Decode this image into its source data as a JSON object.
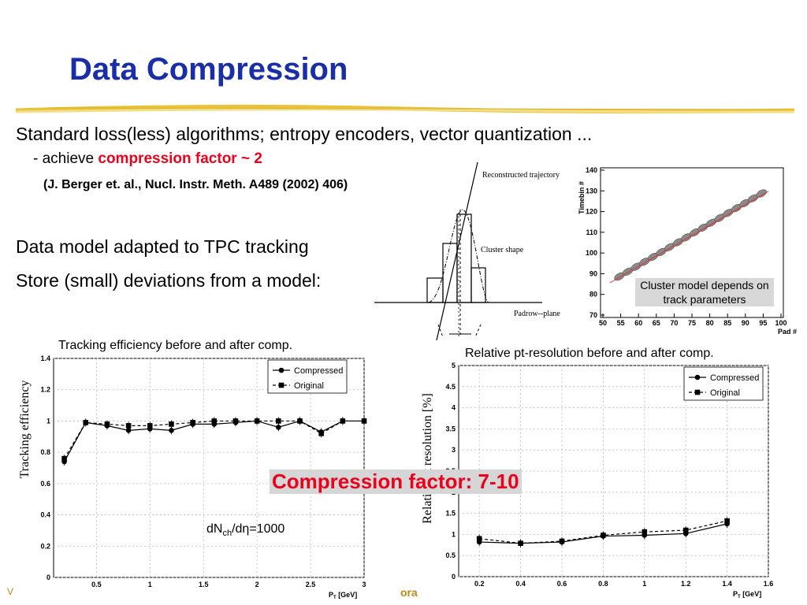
{
  "slide": {
    "title": "Data Compression",
    "line1": "Standard loss(less) algorithms; entropy encoders, vector quantization ...",
    "line2_prefix": "- achieve ",
    "line2_highlight": "compression factor ~ 2",
    "reference": "(J. Berger et. al., Nucl. Instr. Meth. A489 (2002) 406)",
    "bullet1": "Data model adapted to TPC tracking",
    "bullet2": "Store (small) deviations from a model:",
    "compression_badge": "Compression factor: 7-10",
    "dndeta_base": "dN",
    "dndeta_sub": "ch",
    "dndeta_rest": "/dη=1000",
    "footer_fragment": "ora",
    "footer_v": "V"
  },
  "cluster_diagram": {
    "label_trajectory": "Reconstructed trajectory",
    "label_cluster": "Cluster shape",
    "label_padrow": "Padrow--plane"
  },
  "cluster_model": {
    "caption": "Cluster model depends on track parameters",
    "xlabel": "Pad #",
    "ylabel": "Timebin #",
    "x_ticks": [
      "50",
      "55",
      "60",
      "65",
      "70",
      "75",
      "80",
      "85",
      "90",
      "95",
      "100"
    ],
    "y_ticks": [
      "70",
      "80",
      "90",
      "100",
      "110",
      "120",
      "130",
      "140"
    ]
  },
  "chart_data": [
    {
      "type": "line",
      "title": "Tracking efficiency before and after comp.",
      "xlabel": "P_T [GeV]",
      "ylabel": "Tracking efficiency",
      "xlim": [
        0.1,
        3.0
      ],
      "ylim": [
        0,
        1.4
      ],
      "x_ticks": [
        "0.5",
        "1",
        "1.5",
        "2",
        "2.5",
        "3"
      ],
      "y_ticks": [
        "0",
        "0.2",
        "0.4",
        "0.6",
        "0.8",
        "1",
        "1.2",
        "1.4"
      ],
      "legend_position": "top-right",
      "series": [
        {
          "name": "Compressed",
          "marker": "circle",
          "x": [
            0.2,
            0.4,
            0.6,
            0.8,
            1.0,
            1.2,
            1.4,
            1.6,
            1.8,
            2.0,
            2.2,
            2.4,
            2.6,
            2.8,
            3.0
          ],
          "y": [
            0.74,
            0.99,
            0.97,
            0.94,
            0.95,
            0.94,
            0.98,
            0.98,
            0.99,
            1.0,
            0.96,
            1.0,
            0.93,
            1.0,
            1.0
          ]
        },
        {
          "name": "Original",
          "marker": "square",
          "x": [
            0.2,
            0.4,
            0.6,
            0.8,
            1.0,
            1.2,
            1.4,
            1.6,
            1.8,
            2.0,
            2.2,
            2.4,
            2.6,
            2.8,
            3.0
          ],
          "y": [
            0.76,
            0.99,
            0.98,
            0.97,
            0.97,
            0.98,
            0.99,
            1.0,
            1.0,
            1.0,
            1.0,
            1.0,
            0.92,
            1.0,
            1.0
          ]
        }
      ]
    },
    {
      "type": "line",
      "title": "Relative pt-resolution before and after comp.",
      "xlabel": "P_T [GeV]",
      "ylabel": "Relative pt resolution [%]",
      "xlim": [
        0.1,
        1.6
      ],
      "ylim": [
        0,
        5
      ],
      "x_ticks": [
        "0.2",
        "0.4",
        "0.6",
        "0.8",
        "1",
        "1.2",
        "1.4",
        "1.6"
      ],
      "y_ticks": [
        "0",
        "0.5",
        "1",
        "1.5",
        "2",
        "2.5",
        "3",
        "3.5",
        "4",
        "4.5",
        "5"
      ],
      "legend_position": "top-right",
      "series": [
        {
          "name": "Compressed",
          "marker": "circle",
          "x": [
            0.2,
            0.4,
            0.6,
            0.8,
            1.0,
            1.2,
            1.4
          ],
          "y": [
            0.82,
            0.79,
            0.82,
            0.96,
            0.98,
            1.02,
            1.25
          ]
        },
        {
          "name": "Original",
          "marker": "square",
          "x": [
            0.2,
            0.4,
            0.6,
            0.8,
            1.0,
            1.2,
            1.4
          ],
          "y": [
            0.9,
            0.79,
            0.84,
            0.98,
            1.06,
            1.1,
            1.32
          ]
        }
      ]
    }
  ],
  "colors": {
    "title": "#1a2fa6",
    "highlight": "#e8001c",
    "rule": "#e9c43a",
    "fit_line": "#e03030",
    "cluster_blob": "#8a8a8a"
  }
}
